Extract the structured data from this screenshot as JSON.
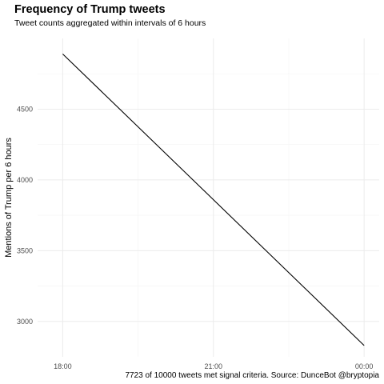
{
  "chart_data": {
    "type": "line",
    "title": "Frequency of Trump tweets",
    "subtitle": "Tweet counts aggregated within intervals of 6 hours",
    "xlabel": "",
    "ylabel": "Mentions of Trump per 6 hours",
    "caption": "7723 of 10000 tweets met signal criteria.  Source: DunceBot @bryptopia",
    "x_ticks": [
      "18:00",
      "21:00",
      "00:00"
    ],
    "x_range_hours": [
      17.5,
      24.3
    ],
    "y_ticks": [
      3000,
      3500,
      4000,
      4500
    ],
    "ylim": [
      2750,
      5000
    ],
    "grid": true,
    "series": [
      {
        "values": [
          {
            "x": "18:00",
            "y": 4890
          },
          {
            "x": "00:00",
            "y": 2830
          }
        ]
      }
    ]
  }
}
